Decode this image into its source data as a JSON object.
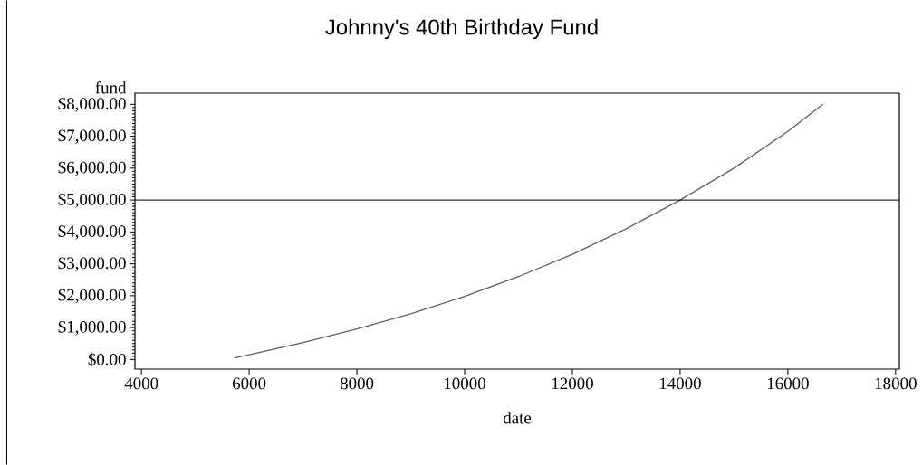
{
  "chart_data": {
    "type": "line",
    "title": "Johnny's 40th Birthday Fund",
    "xlabel": "date",
    "ylabel": "fund",
    "x": [
      5730,
      6000,
      7000,
      8000,
      9000,
      10000,
      11000,
      12000,
      13000,
      14000,
      15000,
      16000,
      16650
    ],
    "series": [
      {
        "color": "#5f5f5f",
        "values": [
          50,
          150,
          530,
          960,
          1430,
          1980,
          2600,
          3300,
          4100,
          5000,
          6000,
          7150,
          8000
        ]
      }
    ],
    "xlim": [
      3880,
      18070
    ],
    "xticks": [
      4000,
      6000,
      8000,
      10000,
      12000,
      14000,
      16000,
      18000
    ],
    "ylim": [
      -300,
      8350
    ],
    "yticks": [
      {
        "value": 0,
        "label": "$0.00"
      },
      {
        "value": 1000,
        "label": "$1,000.00"
      },
      {
        "value": 2000,
        "label": "$2,000.00"
      },
      {
        "value": 3000,
        "label": "$3,000.00"
      },
      {
        "value": 4000,
        "label": "$4,000.00"
      },
      {
        "value": 5000,
        "label": "$5,000.00"
      },
      {
        "value": 6000,
        "label": "$6,000.00"
      },
      {
        "value": 7000,
        "label": "$7,000.00"
      },
      {
        "value": 8000,
        "label": "$8,000.00"
      }
    ],
    "ref_lines": [
      {
        "axis": "y",
        "value": 5000,
        "color": "#000000"
      }
    ]
  }
}
